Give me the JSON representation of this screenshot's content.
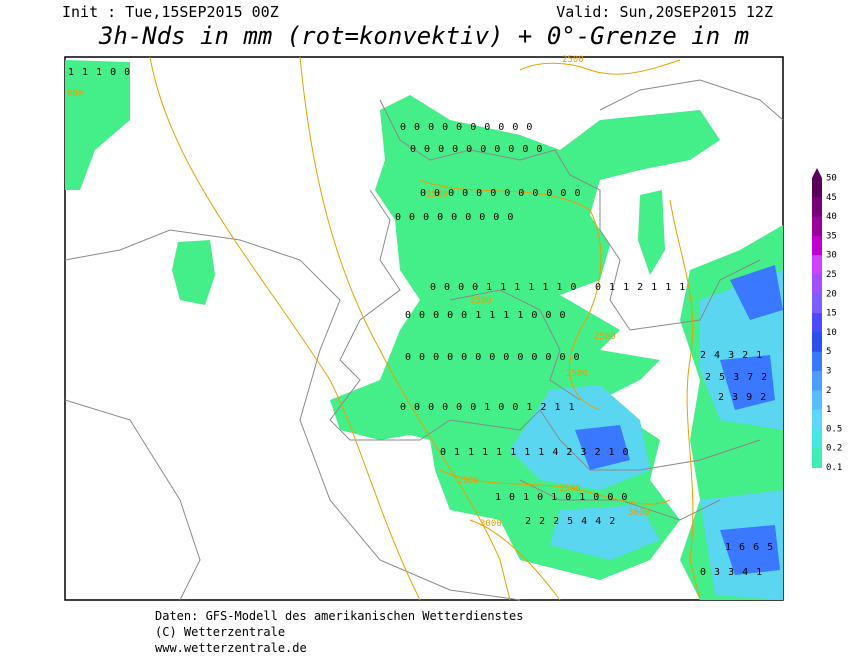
{
  "header": {
    "init": "Init : Tue,15SEP2015 00Z",
    "valid": "Valid: Sun,20SEP2015 12Z",
    "title": "3h-Nds in mm (rot=konvektiv) + 0°-Grenze in m"
  },
  "legend": {
    "levels": [
      50,
      45,
      40,
      35,
      30,
      25,
      20,
      15,
      10,
      5,
      3,
      2,
      1,
      0.5,
      0.2,
      0.1
    ],
    "colors": [
      "#5a005a",
      "#7a007a",
      "#9a009a",
      "#c000d0",
      "#d040ff",
      "#a050ff",
      "#7a5cff",
      "#4a4aff",
      "#2a50f0",
      "#3a78ff",
      "#4a9cff",
      "#58bcff",
      "#5cd8ff",
      "#44e8e0",
      "#3ef0b0"
    ]
  },
  "contour_labels": [
    "000",
    "2500",
    "2500",
    "2500",
    "2500",
    "2500",
    "2500",
    "2500",
    "3000",
    "3000"
  ],
  "precip_rows": [
    "1 1 1 0 0",
    "0 0 0 0 0 0 0 0 0 0",
    "0 0 0 0 0 0 0 0 0 0",
    "0 0 0 0 0 0 0 0 0 0 0 0",
    "0 0 0 0 0 0 0 0 0",
    "0 0 0 0 1 1 1 1 1 1 0",
    "0 0 0 0 0 1 1 1 1 0 0 0",
    "0 0 0 0 0 0 0 0 0 0 0 0 0",
    "0 0 0 0 0 0 1 0 0 1 2 1 1",
    "0 1 1 1 1 1 1 1 4 2 3 2 1 0",
    "1 0 1 0 1 0 1 0 0 0",
    "2 2 2 5 4 4 2",
    "0 1 1 2 1 1 1",
    "2 4 3 2 1",
    "2 5 3 7 2",
    "2 3 9 2",
    "1 6 6 5",
    "0 3 3 4 1"
  ],
  "footer": {
    "source": "Daten: GFS-Modell des amerikanischen Wetterdienstes",
    "copyright": "(C) Wetterzentrale",
    "url": "www.wetterzentrale.de"
  }
}
